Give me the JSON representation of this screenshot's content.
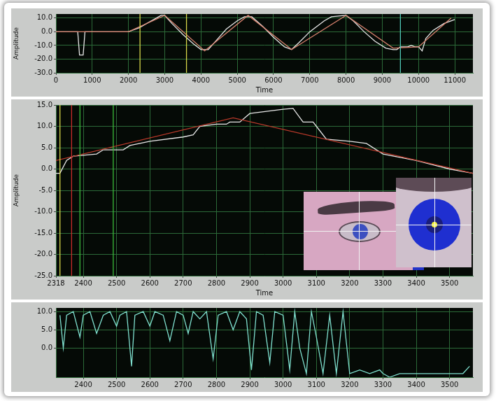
{
  "chart_data": [
    {
      "type": "line",
      "x_label": "Time",
      "y_label": "Amplitude",
      "grid": true,
      "xlim": [
        0,
        11500
      ],
      "xticks": [
        0,
        1000,
        2000,
        3000,
        4000,
        5000,
        6000,
        7000,
        8000,
        9000,
        10000,
        11000
      ],
      "ylim": [
        -30,
        13
      ],
      "yticks": [
        {
          "value": 10,
          "label": "10.0"
        },
        {
          "value": 0,
          "label": "0.0"
        },
        {
          "value": -10,
          "label": "-10.0"
        },
        {
          "value": -20,
          "label": "-20.0"
        },
        {
          "value": -30,
          "label": "-30.0"
        }
      ],
      "series": [
        {
          "color": "#d8d84a",
          "x": [
            2318,
            2318
          ],
          "values": [
            -30,
            13
          ]
        },
        {
          "color": "#d8d84a",
          "x": [
            3600,
            3600
          ],
          "values": [
            -30,
            13
          ]
        },
        {
          "color": "#4fc7b5",
          "x": [
            9500,
            9500
          ],
          "values": [
            -30,
            13
          ]
        },
        {
          "color": "#d9826e",
          "x": [
            0,
            2000,
            3000,
            4100,
            5300,
            6500,
            8000,
            9300,
            10000,
            10900
          ],
          "values": [
            0,
            0,
            12,
            -14,
            12,
            -13,
            12,
            -12,
            -11,
            10
          ]
        },
        {
          "color": "#e8e8e8",
          "x": [
            0,
            500,
            600,
            650,
            750,
            800,
            1000,
            2000,
            2100,
            2300,
            2500,
            2700,
            2900,
            3000,
            3200,
            3500,
            3800,
            4000,
            4200,
            4400,
            4700,
            5000,
            5200,
            5400,
            5700,
            6000,
            6300,
            6500,
            6700,
            7000,
            7400,
            7600,
            8000,
            8200,
            8500,
            8800,
            9100,
            9300,
            9400,
            9500,
            9700,
            9800,
            9900,
            10000,
            10100,
            10200,
            10400,
            10700,
            11000
          ],
          "values": [
            0,
            0,
            0,
            -17,
            -17,
            0,
            0,
            0,
            1,
            3,
            6,
            9,
            12,
            12,
            6,
            -2,
            -9,
            -13,
            -13,
            -7,
            2,
            8,
            11,
            11,
            4,
            -4,
            -11,
            -13,
            -8,
            0,
            8,
            11,
            12,
            8,
            0,
            -7,
            -12,
            -13,
            -13,
            -11,
            -11,
            -10,
            -11,
            -11,
            -14,
            -5,
            1,
            6,
            9
          ]
        }
      ]
    },
    {
      "type": "line",
      "x_label": "Time",
      "y_label": "Amplitude",
      "grid": true,
      "xlim": [
        2318,
        3570
      ],
      "xticks": [
        2318,
        2400,
        2500,
        2600,
        2700,
        2800,
        2900,
        3000,
        3100,
        3200,
        3300,
        3400,
        3500
      ],
      "ylim": [
        -25,
        15
      ],
      "yticks": [
        {
          "value": 15,
          "label": "15.0"
        },
        {
          "value": 10,
          "label": "10.0"
        },
        {
          "value": 5,
          "label": "5.0"
        },
        {
          "value": 0,
          "label": "0.0"
        },
        {
          "value": -5,
          "label": "-5.0"
        },
        {
          "value": -10,
          "label": "-10.0"
        },
        {
          "value": -15,
          "label": "-15.0"
        },
        {
          "value": -20,
          "label": "-20.0"
        },
        {
          "value": -25,
          "label": "-25.0"
        }
      ],
      "series": [
        {
          "color": "#d8d84a",
          "x": [
            2330,
            2330
          ],
          "values": [
            -25,
            15
          ]
        },
        {
          "color": "#cc2a2a",
          "x": [
            2365,
            2365
          ],
          "values": [
            -25,
            15
          ]
        },
        {
          "color": "#3cbf3c",
          "x": [
            2390,
            2390
          ],
          "values": [
            -25,
            15
          ]
        },
        {
          "color": "#3cbf3c",
          "x": [
            2490,
            2490
          ],
          "values": [
            -25,
            15
          ]
        },
        {
          "color": "#b8392a",
          "x": [
            2318,
            2850,
            3570
          ],
          "values": [
            2,
            12,
            -1
          ]
        },
        {
          "color": "#e8e8e8",
          "x": [
            2318,
            2330,
            2350,
            2370,
            2440,
            2460,
            2520,
            2540,
            2570,
            2600,
            2700,
            2730,
            2750,
            2800,
            2830,
            2840,
            2870,
            2900,
            2950,
            3000,
            3030,
            3060,
            3090,
            3100,
            3130,
            3200,
            3250,
            3300,
            3400,
            3500,
            3570
          ],
          "values": [
            -1,
            -1,
            2,
            3,
            3.5,
            4.5,
            4.5,
            5.5,
            6,
            6.5,
            7.5,
            8,
            10,
            10.5,
            10.5,
            11,
            11,
            13,
            13.5,
            14,
            14.2,
            11,
            11,
            10,
            7,
            6.5,
            6,
            3.5,
            2,
            0,
            -1
          ]
        }
      ]
    },
    {
      "type": "line",
      "grid": true,
      "xlim": [
        2318,
        3570
      ],
      "xticks": [
        2400,
        2500,
        2600,
        2700,
        2800,
        2900,
        3000,
        3100,
        3200,
        3300,
        3400,
        3500
      ],
      "ylim": [
        -8,
        11
      ],
      "yticks": [
        {
          "value": 10,
          "label": "10.0"
        },
        {
          "value": 5,
          "label": "5.0"
        },
        {
          "value": 0,
          "label": "0.0"
        }
      ],
      "series": [
        {
          "color": "#7fe0cf",
          "x": [
            2330,
            2340,
            2350,
            2370,
            2390,
            2400,
            2420,
            2440,
            2460,
            2480,
            2500,
            2510,
            2530,
            2545,
            2555,
            2580,
            2600,
            2615,
            2640,
            2660,
            2680,
            2700,
            2715,
            2730,
            2750,
            2770,
            2790,
            2805,
            2830,
            2850,
            2870,
            2890,
            2905,
            2920,
            2940,
            2960,
            2975,
            3000,
            3020,
            3035,
            3050,
            3070,
            3085,
            3100,
            3120,
            3140,
            3160,
            3180,
            3200,
            3230,
            3260,
            3290,
            3300,
            3320,
            3350,
            3400,
            3450,
            3500,
            3540,
            3560
          ],
          "values": [
            9,
            0,
            9,
            10,
            3,
            9,
            10,
            4,
            9,
            10,
            6,
            9,
            10,
            -5,
            9,
            10,
            6,
            10,
            9,
            2,
            10,
            9,
            4,
            10,
            8,
            10,
            -3,
            9,
            10,
            5,
            10,
            8,
            -6,
            10,
            9,
            -4,
            10,
            9,
            -6,
            10,
            0,
            -7,
            10,
            3,
            -7,
            9,
            -7,
            10,
            -7,
            -6,
            -7,
            -6,
            -7,
            -8,
            -7,
            -7,
            -7,
            -7,
            -7,
            -5
          ]
        }
      ]
    }
  ]
}
